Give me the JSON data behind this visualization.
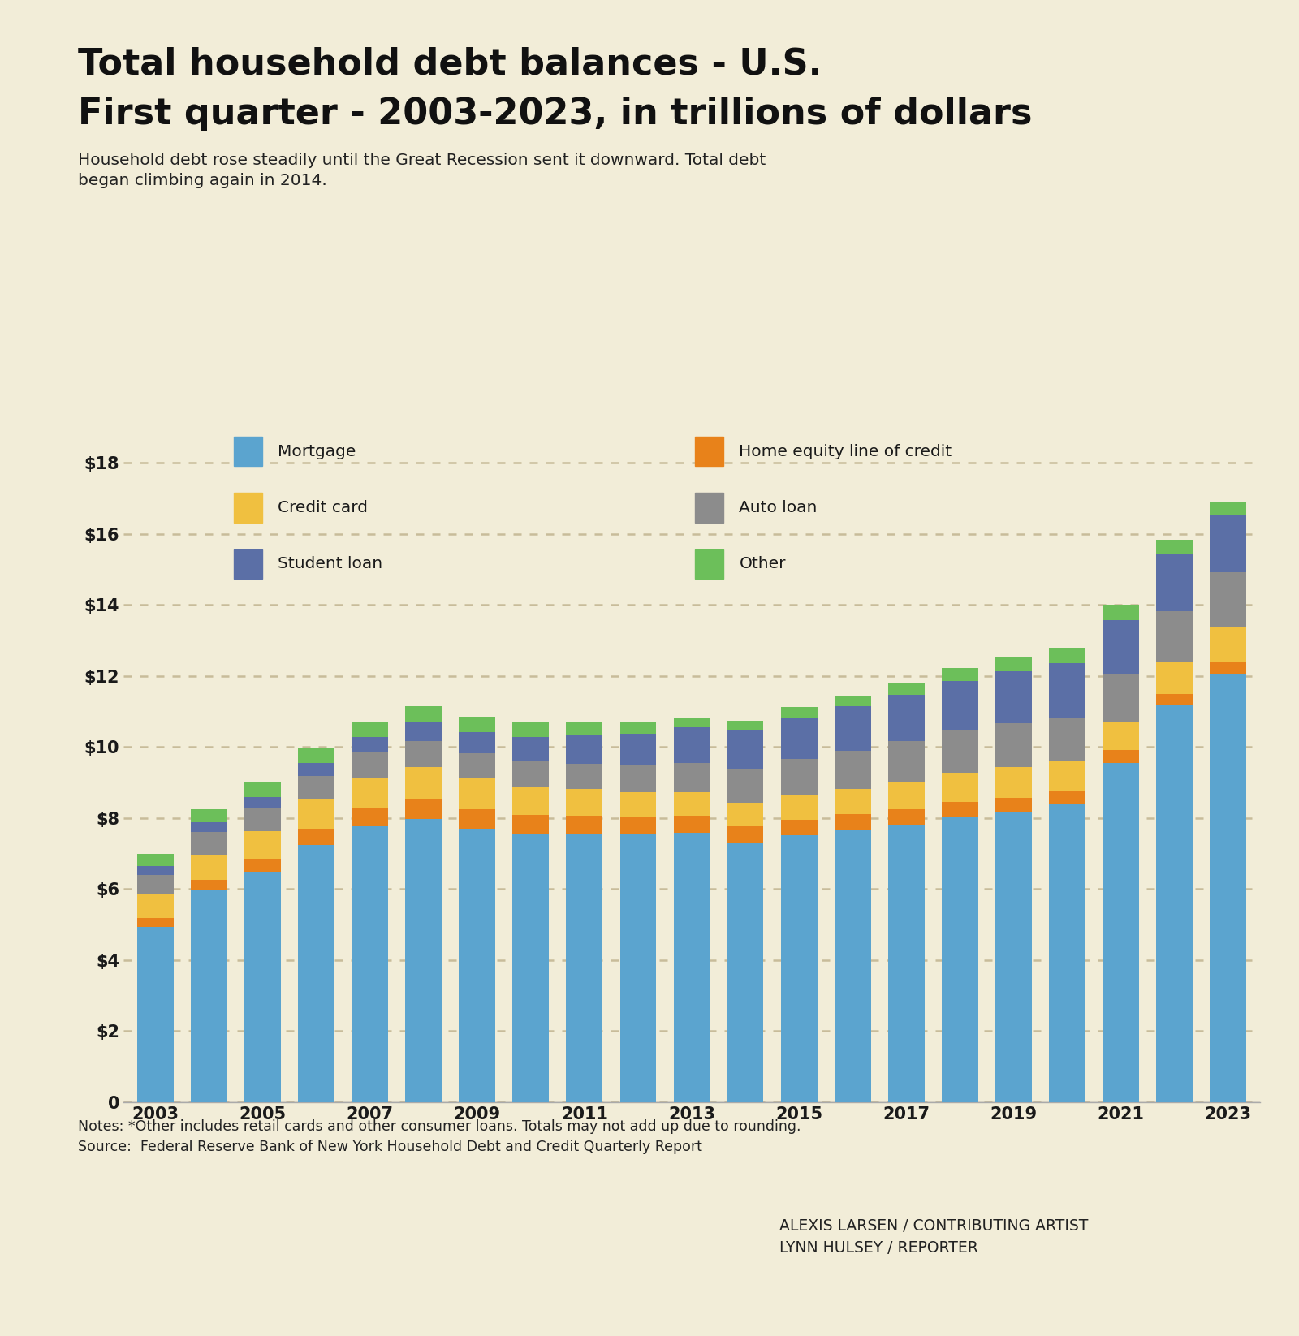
{
  "title_line1": "Total household debt balances - U.S.",
  "title_line2": "First quarter - 2003-2023, in trillions of dollars",
  "subtitle": "Household debt rose steadily until the Great Recession sent it downward. Total debt\nbegan climbing again in 2014.",
  "notes": "Notes: *Other includes retail cards and other consumer loans. Totals may not add up due to rounding.\nSource:  Federal Reserve Bank of New York Household Debt and Credit Quarterly Report",
  "credit": "ALEXIS LARSEN / CONTRIBUTING ARTIST\nLYNN HULSEY / REPORTER",
  "years": [
    2003,
    2004,
    2005,
    2006,
    2007,
    2008,
    2009,
    2010,
    2011,
    2012,
    2013,
    2014,
    2015,
    2016,
    2017,
    2018,
    2019,
    2020,
    2021,
    2022,
    2023
  ],
  "mortgage": [
    4.94,
    5.96,
    6.48,
    7.24,
    7.77,
    7.98,
    7.7,
    7.57,
    7.56,
    7.55,
    7.58,
    7.3,
    7.52,
    7.68,
    7.8,
    8.02,
    8.17,
    8.41,
    9.56,
    11.18,
    12.04
  ],
  "heloc": [
    0.24,
    0.31,
    0.38,
    0.46,
    0.51,
    0.56,
    0.54,
    0.52,
    0.5,
    0.49,
    0.48,
    0.47,
    0.43,
    0.43,
    0.44,
    0.44,
    0.4,
    0.37,
    0.37,
    0.32,
    0.34
  ],
  "auto": [
    0.56,
    0.62,
    0.64,
    0.66,
    0.7,
    0.74,
    0.72,
    0.7,
    0.72,
    0.75,
    0.83,
    0.93,
    1.02,
    1.07,
    1.16,
    1.2,
    1.22,
    1.23,
    1.37,
    1.43,
    1.56
  ],
  "credit_card": [
    0.67,
    0.71,
    0.78,
    0.82,
    0.87,
    0.9,
    0.87,
    0.81,
    0.76,
    0.69,
    0.66,
    0.66,
    0.7,
    0.72,
    0.77,
    0.83,
    0.88,
    0.82,
    0.77,
    0.9,
    0.99
  ],
  "student_loan": [
    0.25,
    0.29,
    0.32,
    0.37,
    0.44,
    0.52,
    0.6,
    0.68,
    0.8,
    0.9,
    1.0,
    1.1,
    1.17,
    1.26,
    1.3,
    1.37,
    1.47,
    1.54,
    1.51,
    1.59,
    1.6
  ],
  "other": [
    0.34,
    0.36,
    0.4,
    0.42,
    0.44,
    0.46,
    0.43,
    0.41,
    0.35,
    0.32,
    0.29,
    0.29,
    0.29,
    0.3,
    0.33,
    0.37,
    0.4,
    0.42,
    0.43,
    0.41,
    0.38
  ],
  "colors": {
    "mortgage": "#5BA4CF",
    "heloc": "#E8821A",
    "auto": "#8C8C8C",
    "credit_card": "#F0C040",
    "student_loan": "#5B6FA6",
    "other": "#6CBF5A"
  },
  "legend_labels": {
    "mortgage": "Mortgage",
    "heloc": "Home equity line of credit",
    "auto": "Auto loan",
    "credit_card": "Credit card",
    "student_loan": "Student loan",
    "other": "Other"
  },
  "background_color": "#F2EDD8",
  "grid_color": "#C8BC9A",
  "ylim": [
    0,
    19
  ],
  "yticks": [
    0,
    2,
    4,
    6,
    8,
    10,
    12,
    14,
    16,
    18
  ],
  "ytick_labels": [
    "0",
    "$2",
    "$4",
    "$6",
    "$8",
    "$10",
    "$12",
    "$14",
    "$16",
    "$18"
  ]
}
